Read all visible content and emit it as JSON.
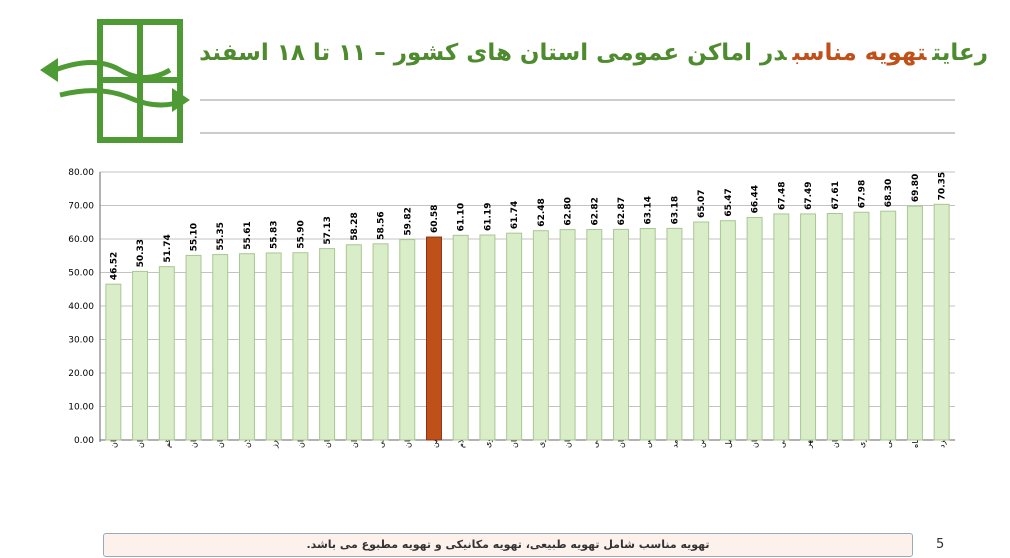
{
  "chart_data": {
    "type": "bar",
    "title_parts": [
      {
        "text": "رعایت",
        "color": "#4e8a2e"
      },
      {
        "text": "تهویه مناسب",
        "color": "#c0501a"
      },
      {
        "text": "در اماکن عمومی استان های کشور – ۱۱ تا ۱۸ اسفند",
        "color": "#4e8a2e"
      }
    ],
    "categories": [
      "هرمزگان",
      "همدان",
      "قم",
      "لرستان",
      "سیستان و بلوچستان",
      "گیلان",
      "البرز",
      "تهران",
      "زنجان",
      "مازندران",
      "آذربایجان شرقی",
      "خوزستان",
      "میانگین",
      "ایلام",
      "خراسان رضوی",
      "کرمان",
      "چهارمحال و بختیاری",
      "اصفهان",
      "خراسان شمالی",
      "کردستان",
      "فارس",
      "کهگیلویه و بویراحمد",
      "قزوین",
      "اردبیل",
      "سمنان",
      "آذربایجان غربی",
      "بوشهر",
      "گلستان",
      "مرکزی",
      "خراسان جنوبی",
      "کرمانشاه",
      "یزد"
    ],
    "values": [
      46.52,
      50.33,
      51.74,
      55.1,
      55.35,
      55.61,
      55.83,
      55.9,
      57.13,
      58.28,
      58.56,
      59.82,
      60.58,
      61.1,
      61.19,
      61.74,
      62.48,
      62.8,
      62.82,
      62.87,
      63.14,
      63.18,
      65.07,
      65.47,
      66.44,
      67.48,
      67.49,
      67.61,
      67.98,
      68.3,
      69.8,
      70.35
    ],
    "value_labels": [
      "46.52",
      "50.33",
      "51.74",
      "55.10",
      "55.35",
      "55.61",
      "55.83",
      "55.90",
      "57.13",
      "58.28",
      "58.56",
      "59.82",
      "60.58",
      "61.10",
      "61.19",
      "61.74",
      "62.48",
      "62.80",
      "62.82",
      "62.87",
      "63.14",
      "63.18",
      "65.07",
      "65.47",
      "66.44",
      "67.48",
      "67.49",
      "67.61",
      "67.98",
      "68.30",
      "69.80",
      "70.35"
    ],
    "colors": [
      "#d9edc9",
      "#d9edc9",
      "#d9edc9",
      "#d9edc9",
      "#d9edc9",
      "#d9edc9",
      "#d9edc9",
      "#d9edc9",
      "#d9edc9",
      "#d9edc9",
      "#d9edc9",
      "#d9edc9",
      "#c0501a",
      "#d9edc9",
      "#d9edc9",
      "#d9edc9",
      "#d9edc9",
      "#d9edc9",
      "#d9edc9",
      "#d9edc9",
      "#d9edc9",
      "#d9edc9",
      "#d9edc9",
      "#d9edc9",
      "#d9edc9",
      "#d9edc9",
      "#d9edc9",
      "#d9edc9",
      "#d9edc9",
      "#d9edc9",
      "#d9edc9",
      "#d9edc9"
    ],
    "ylim": [
      0,
      80
    ],
    "yticks": [
      {
        "value": 0,
        "label": "0.00"
      },
      {
        "value": 10,
        "label": "10.00"
      },
      {
        "value": 20,
        "label": "20.00"
      },
      {
        "value": 30,
        "label": "30.00"
      },
      {
        "value": 40,
        "label": "40.00"
      },
      {
        "value": 50,
        "label": "50.00"
      },
      {
        "value": 60,
        "label": "60.00"
      },
      {
        "value": 70,
        "label": "70.00"
      },
      {
        "value": 80,
        "label": "80.00"
      }
    ],
    "grid": true,
    "note": "تهویه مناسب شامل تهویه طبیعی، تهویه مکانیکی و تهویه مطبوع می باشد.",
    "page_number": "5"
  }
}
